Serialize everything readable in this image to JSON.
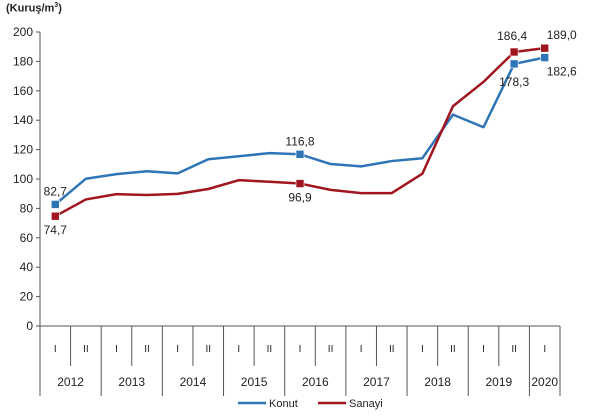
{
  "chart_data": {
    "type": "line",
    "unit_label": "(Kuruş/m",
    "unit_superscript": "3",
    "unit_close": ")",
    "ylim": [
      0,
      200
    ],
    "y_ticks": [
      0,
      20,
      40,
      60,
      80,
      100,
      120,
      140,
      160,
      180,
      200
    ],
    "x_periods": [
      "I",
      "II",
      "I",
      "II",
      "I",
      "II",
      "I",
      "II",
      "I",
      "II",
      "I",
      "II",
      "I",
      "II",
      "I",
      "II",
      "I"
    ],
    "years": [
      "2012",
      "2013",
      "2014",
      "2015",
      "2016",
      "2017",
      "2018",
      "2019",
      "2020"
    ],
    "grid": false,
    "legend_position": "bottom",
    "series": [
      {
        "name": "Konut",
        "color": "#2e75b6",
        "values": [
          82.7,
          100.2,
          103.3,
          105.3,
          103.8,
          113.4,
          115.5,
          117.6,
          116.8,
          110.2,
          108.6,
          112.2,
          114.1,
          143.8,
          135.2,
          178.3,
          182.6
        ],
        "labels": {
          "0": "82,7",
          "8": "116,8",
          "15": "178,3",
          "16": "182,6"
        },
        "markers": [
          0,
          8,
          15,
          16
        ]
      },
      {
        "name": "Sanayi",
        "color": "#a0151e",
        "values": [
          74.7,
          86.1,
          89.7,
          89.1,
          89.9,
          93.2,
          99.2,
          98.1,
          96.9,
          92.6,
          90.4,
          90.4,
          103.6,
          149.5,
          166.1,
          186.4,
          189.0
        ],
        "labels": {
          "0": "74,7",
          "8": "96,9",
          "15": "186,4",
          "16": "189,0"
        },
        "markers": [
          0,
          8,
          15,
          16
        ]
      }
    ]
  }
}
